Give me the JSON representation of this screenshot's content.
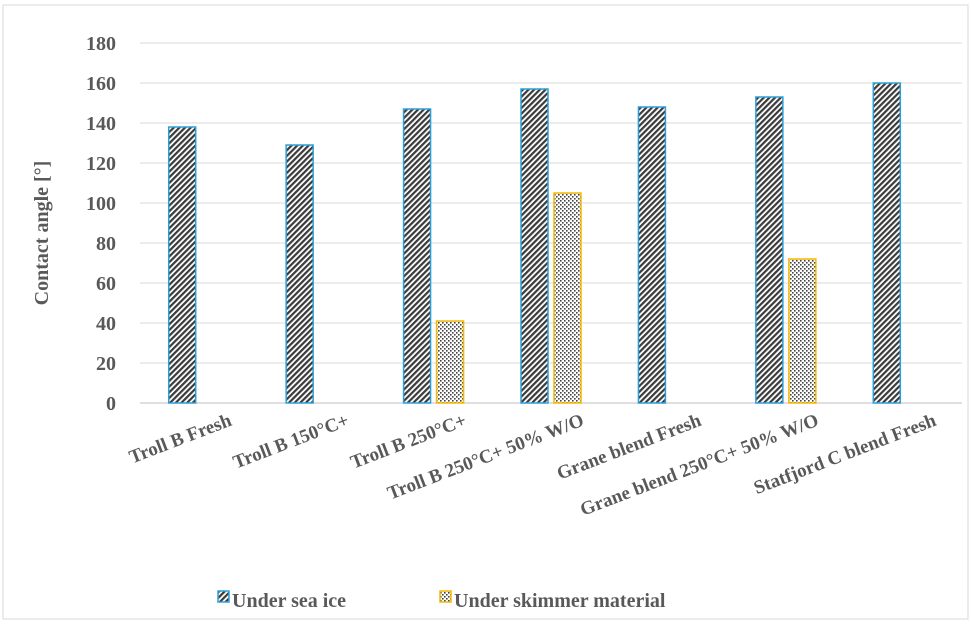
{
  "chart_data": {
    "type": "bar",
    "title": "",
    "xlabel": "",
    "ylabel": "Contact  angle [°]",
    "ylim": [
      0,
      180
    ],
    "yticks": [
      0,
      20,
      40,
      60,
      80,
      100,
      120,
      140,
      160,
      180
    ],
    "grid": true,
    "legend_position": "bottom",
    "categories": [
      "Troll B Fresh",
      "Troll B 150°C+",
      "Troll B 250°C+",
      "Troll B 250°C+ 50% W/O",
      "Grane blend Fresh",
      "Grane blend 250°C+ 50% W/O",
      "Statfjord C blend Fresh"
    ],
    "series": [
      {
        "name": "Under sea ice",
        "values": [
          138,
          129,
          147,
          157,
          148,
          153,
          160
        ],
        "color": "#2e9fd6",
        "pattern": "dense-hatch"
      },
      {
        "name": "Under skimmer material",
        "values": [
          null,
          null,
          41,
          105,
          null,
          72,
          null
        ],
        "color": "#f5b800",
        "pattern": "dots"
      }
    ]
  }
}
